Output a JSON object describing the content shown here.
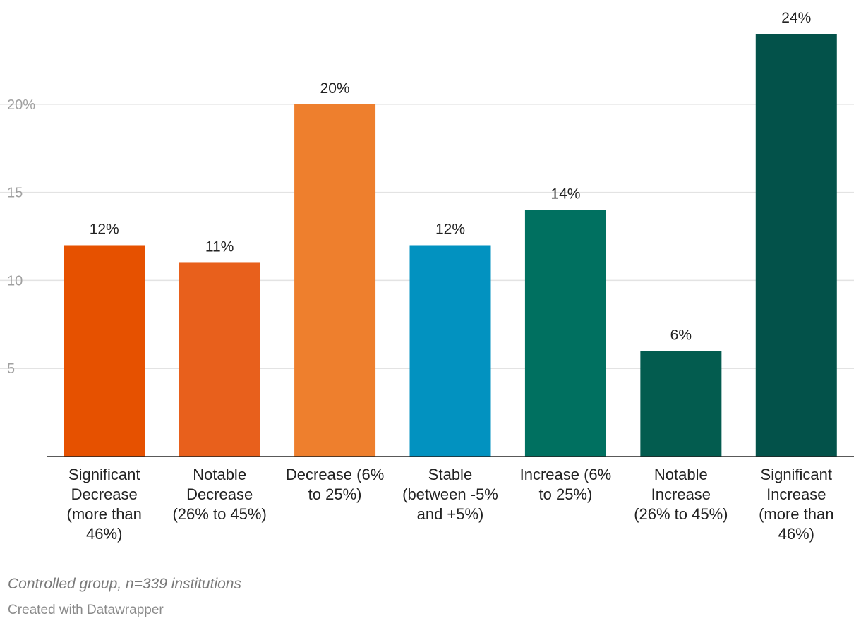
{
  "chart_data": {
    "type": "bar",
    "categories": [
      [
        "Significant",
        "Decrease",
        "(more than",
        "46%)"
      ],
      [
        "Notable",
        "Decrease",
        "(26% to 45%)"
      ],
      [
        "Decrease (6%",
        "to 25%)"
      ],
      [
        "Stable",
        "(between -5%",
        "and +5%)"
      ],
      [
        "Increase (6%",
        "to 25%)"
      ],
      [
        "Notable",
        "Increase",
        "(26% to 45%)"
      ],
      [
        "Significant",
        "Increase",
        "(more than",
        "46%)"
      ]
    ],
    "values": [
      12,
      11,
      20,
      12,
      14,
      6,
      24
    ],
    "value_labels": [
      "12%",
      "11%",
      "20%",
      "12%",
      "14%",
      "6%",
      "24%"
    ],
    "colors": [
      "#e65100",
      "#e8601c",
      "#ee7f2d",
      "#0292c0",
      "#007060",
      "#035c4f",
      "#03524a"
    ],
    "ylim": [
      0,
      24
    ],
    "yticks": [
      5,
      10,
      15,
      20
    ],
    "ytick_labels": [
      "5",
      "10",
      "15",
      "20%"
    ],
    "grid": true,
    "legend": "none"
  },
  "footer": {
    "note": "Controlled group, n=339 institutions",
    "credit": "Created with Datawrapper"
  }
}
